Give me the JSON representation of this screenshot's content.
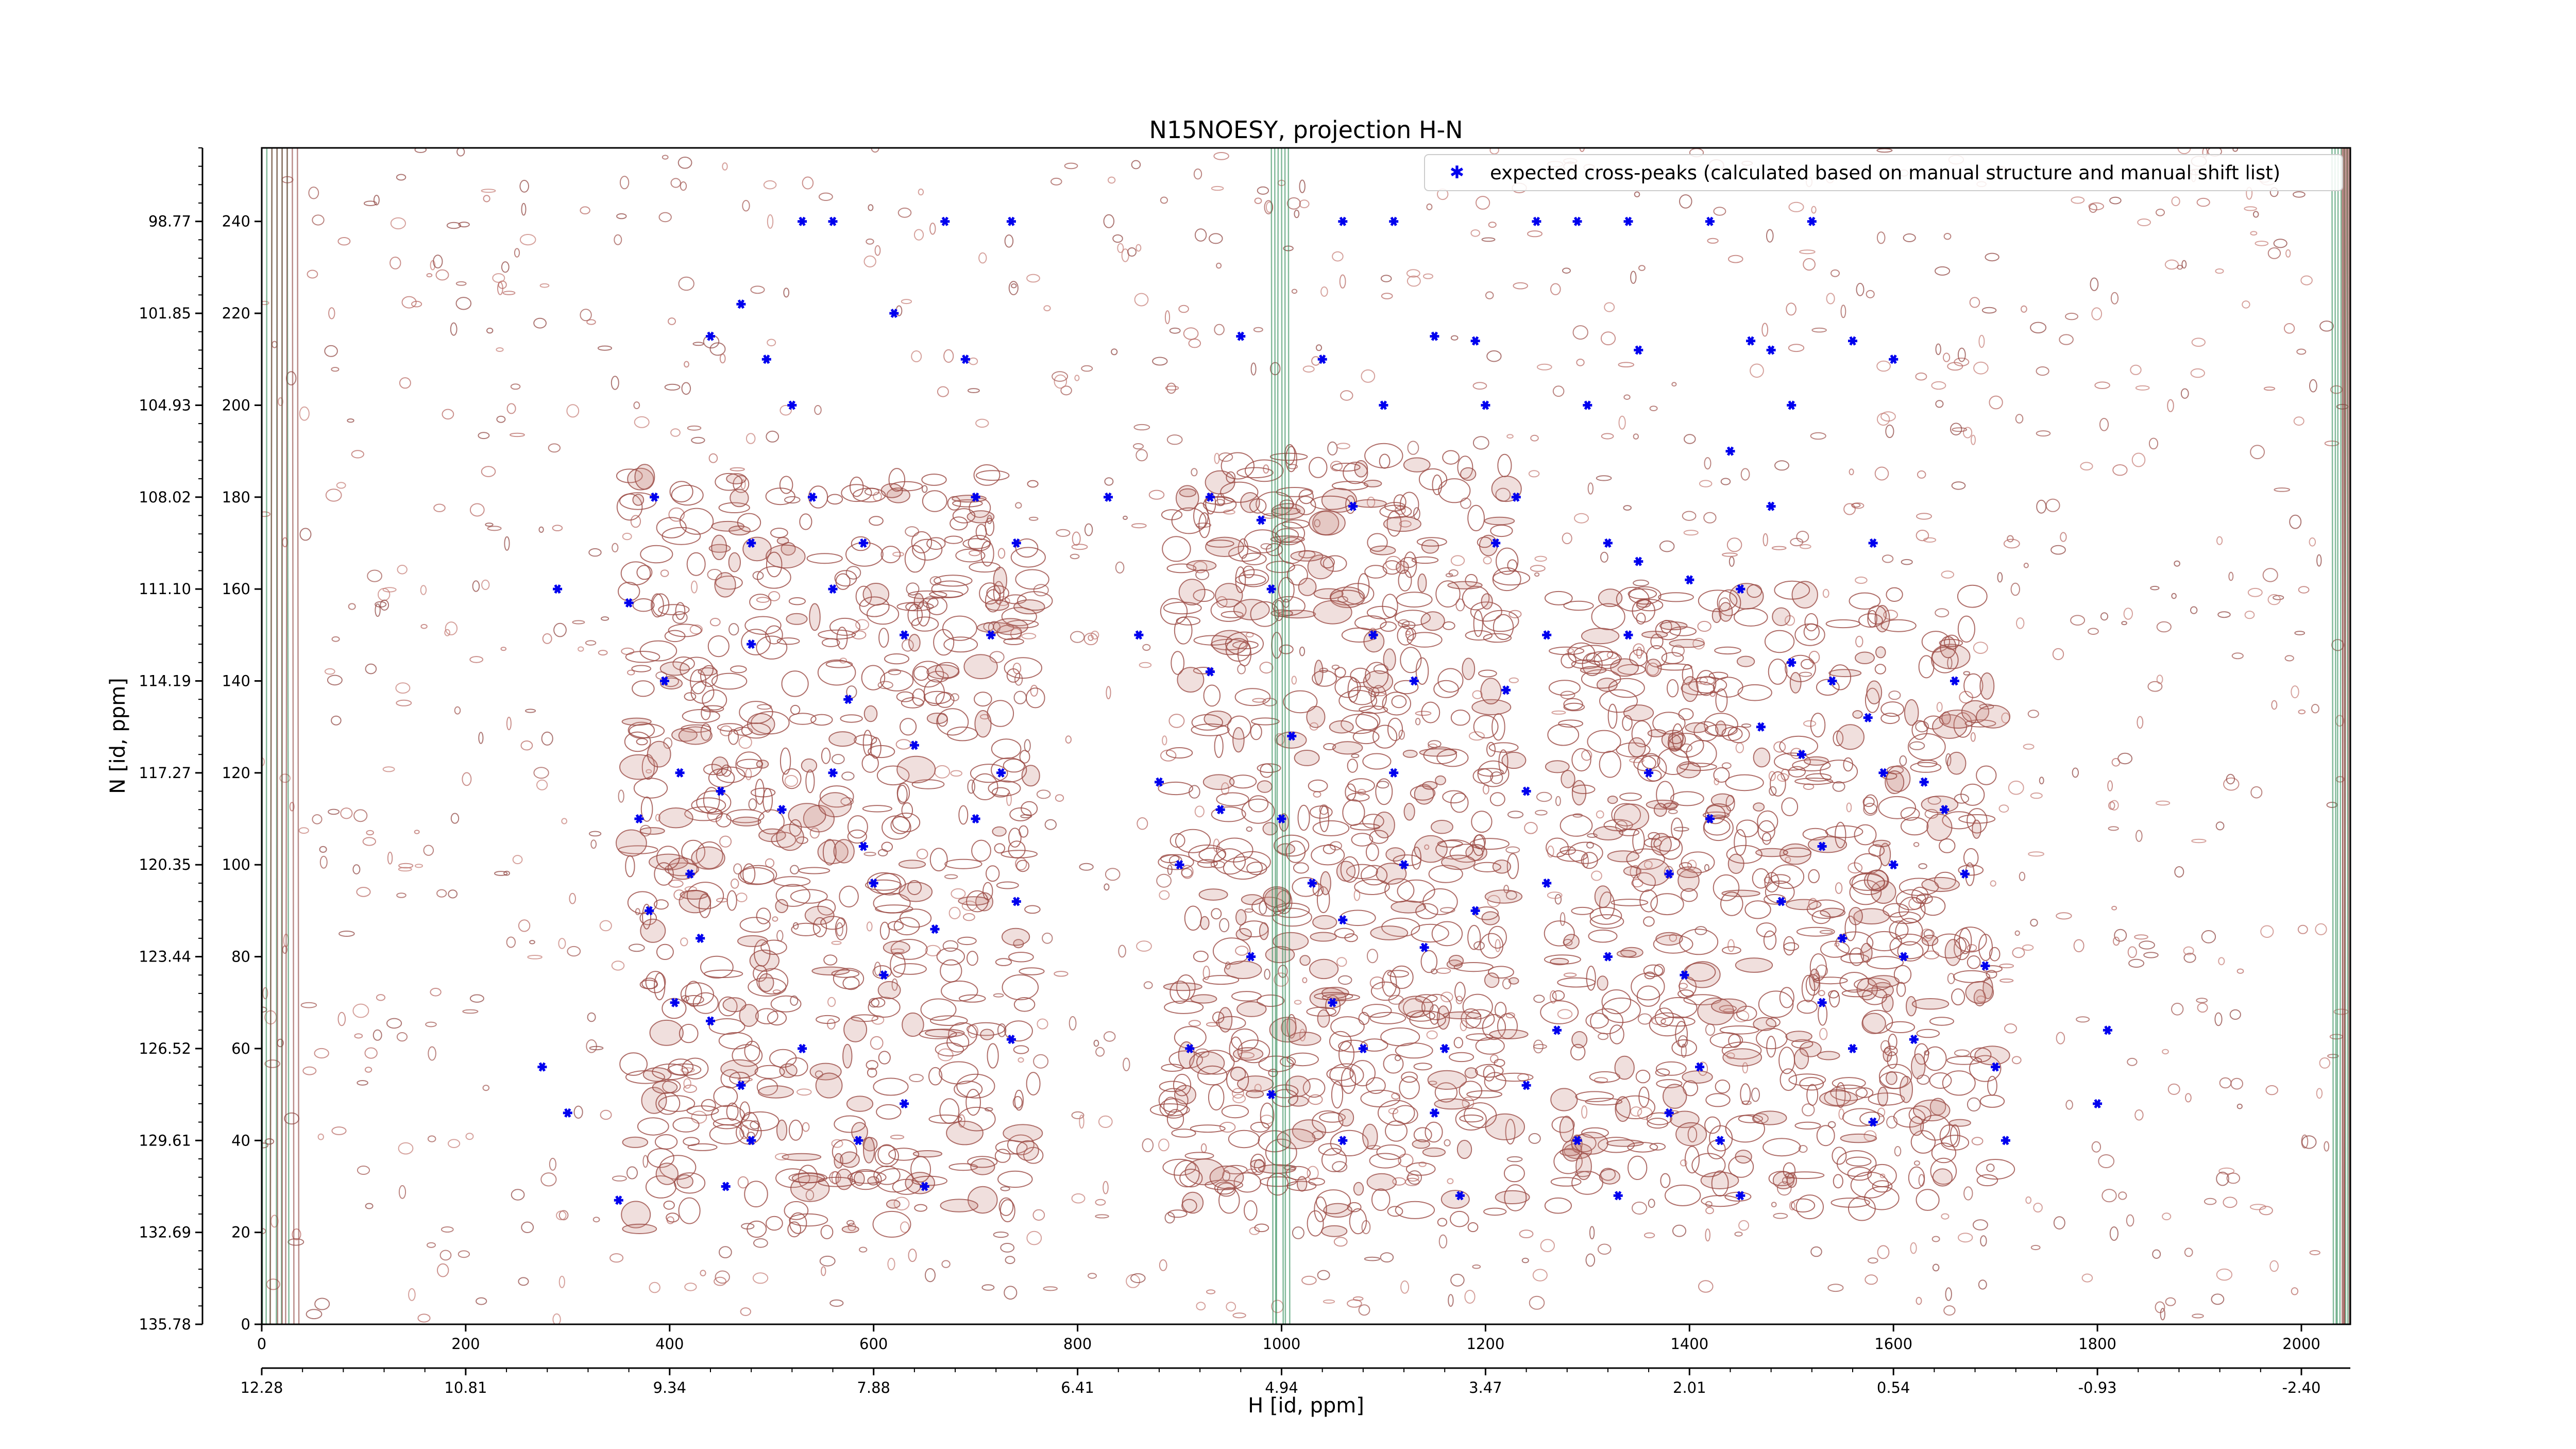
{
  "chart_data": {
    "type": "scatter",
    "title": "N15NOESY, projection H-N",
    "xlabel": "H [id, ppm]",
    "ylabel": "N [id, ppm]",
    "xlim": [
      0,
      2048
    ],
    "ylim": [
      0,
      256
    ],
    "grid": false,
    "legend_position": "top-right",
    "x_ticks_index": [
      "0",
      "200",
      "400",
      "600",
      "800",
      "1000",
      "1200",
      "1400",
      "1600",
      "1800",
      "2000"
    ],
    "x_ticks_ppm": [
      "12.28",
      "10.81",
      "9.34",
      "7.88",
      "6.41",
      "4.94",
      "3.47",
      "2.01",
      "0.54",
      "-0.93",
      "-2.40"
    ],
    "y_ticks_index": [
      "0",
      "20",
      "40",
      "60",
      "80",
      "100",
      "120",
      "140",
      "160",
      "180",
      "200",
      "220",
      "240"
    ],
    "y_ticks_ppm": [
      "135.78",
      "132.69",
      "129.61",
      "126.52",
      "123.44",
      "120.35",
      "117.27",
      "114.19",
      "111.10",
      "108.02",
      "104.93",
      "101.85",
      "98.77"
    ],
    "series": [
      {
        "name": "expected cross-peaks (calculated based on manual structure and manual shift list)",
        "color": "#0000ee",
        "marker": "x",
        "points": [
          [
            290,
            160
          ],
          [
            275,
            56
          ],
          [
            300,
            46
          ],
          [
            350,
            27
          ],
          [
            360,
            157
          ],
          [
            370,
            110
          ],
          [
            385,
            180
          ],
          [
            395,
            140
          ],
          [
            410,
            120
          ],
          [
            420,
            98
          ],
          [
            430,
            84
          ],
          [
            440,
            66
          ],
          [
            455,
            30
          ],
          [
            470,
            52
          ],
          [
            480,
            148
          ],
          [
            495,
            210
          ],
          [
            520,
            200
          ],
          [
            540,
            180
          ],
          [
            560,
            160
          ],
          [
            575,
            136
          ],
          [
            590,
            104
          ],
          [
            610,
            76
          ],
          [
            630,
            48
          ],
          [
            650,
            30
          ],
          [
            670,
            240
          ],
          [
            690,
            210
          ],
          [
            700,
            180
          ],
          [
            715,
            150
          ],
          [
            725,
            120
          ],
          [
            740,
            92
          ],
          [
            735,
            62
          ],
          [
            450,
            116
          ],
          [
            510,
            112
          ],
          [
            560,
            120
          ],
          [
            600,
            96
          ],
          [
            640,
            126
          ],
          [
            660,
            86
          ],
          [
            700,
            110
          ],
          [
            380,
            90
          ],
          [
            405,
            70
          ],
          [
            480,
            40
          ],
          [
            530,
            60
          ],
          [
            585,
            40
          ],
          [
            620,
            220
          ],
          [
            530,
            240
          ],
          [
            560,
            240
          ],
          [
            735,
            240
          ],
          [
            440,
            215
          ],
          [
            470,
            222
          ],
          [
            480,
            170
          ],
          [
            590,
            170
          ],
          [
            630,
            150
          ],
          [
            740,
            170
          ],
          [
            830,
            180
          ],
          [
            860,
            150
          ],
          [
            880,
            118
          ],
          [
            900,
            100
          ],
          [
            910,
            60
          ],
          [
            930,
            142
          ],
          [
            940,
            112
          ],
          [
            970,
            80
          ],
          [
            990,
            50
          ],
          [
            1010,
            128
          ],
          [
            1030,
            96
          ],
          [
            1050,
            70
          ],
          [
            1060,
            40
          ],
          [
            1070,
            178
          ],
          [
            1090,
            150
          ],
          [
            1110,
            120
          ],
          [
            1120,
            100
          ],
          [
            1140,
            82
          ],
          [
            1160,
            60
          ],
          [
            1175,
            28
          ],
          [
            1190,
            214
          ],
          [
            1210,
            170
          ],
          [
            1220,
            138
          ],
          [
            1240,
            116
          ],
          [
            1260,
            96
          ],
          [
            1270,
            64
          ],
          [
            1290,
            40
          ],
          [
            1300,
            200
          ],
          [
            1320,
            170
          ],
          [
            1340,
            150
          ],
          [
            1360,
            120
          ],
          [
            1380,
            98
          ],
          [
            1395,
            76
          ],
          [
            1410,
            56
          ],
          [
            1430,
            40
          ],
          [
            1450,
            28
          ],
          [
            1460,
            214
          ],
          [
            1480,
            178
          ],
          [
            1500,
            144
          ],
          [
            1510,
            124
          ],
          [
            1530,
            104
          ],
          [
            1550,
            84
          ],
          [
            1560,
            60
          ],
          [
            1580,
            44
          ],
          [
            1590,
            120
          ],
          [
            1600,
            100
          ],
          [
            1610,
            80
          ],
          [
            1620,
            62
          ],
          [
            1630,
            118
          ],
          [
            1650,
            112
          ],
          [
            1670,
            98
          ],
          [
            1690,
            78
          ],
          [
            1700,
            56
          ],
          [
            1710,
            40
          ],
          [
            1800,
            48
          ],
          [
            1810,
            64
          ],
          [
            1660,
            140
          ],
          [
            1520,
            240
          ],
          [
            1420,
            240
          ],
          [
            1340,
            240
          ],
          [
            1290,
            240
          ],
          [
            1250,
            240
          ],
          [
            1110,
            240
          ],
          [
            1060,
            240
          ],
          [
            1040,
            210
          ],
          [
            960,
            215
          ],
          [
            980,
            175
          ],
          [
            1150,
            215
          ],
          [
            1230,
            180
          ],
          [
            1350,
            212
          ],
          [
            1440,
            190
          ],
          [
            1480,
            212
          ],
          [
            1500,
            200
          ],
          [
            1560,
            214
          ],
          [
            1580,
            170
          ],
          [
            1600,
            210
          ],
          [
            1350,
            166
          ],
          [
            1400,
            162
          ],
          [
            1450,
            160
          ],
          [
            1470,
            130
          ],
          [
            1540,
            140
          ],
          [
            1575,
            132
          ],
          [
            1100,
            200
          ],
          [
            1200,
            200
          ],
          [
            1260,
            150
          ],
          [
            1190,
            90
          ],
          [
            1320,
            80
          ],
          [
            1420,
            110
          ],
          [
            1490,
            92
          ],
          [
            1530,
            70
          ],
          [
            1060,
            88
          ],
          [
            1130,
            140
          ],
          [
            990,
            160
          ],
          [
            930,
            180
          ],
          [
            1000,
            110
          ],
          [
            1080,
            60
          ],
          [
            1150,
            46
          ],
          [
            1240,
            52
          ],
          [
            1330,
            28
          ],
          [
            1380,
            46
          ]
        ]
      }
    ]
  }
}
